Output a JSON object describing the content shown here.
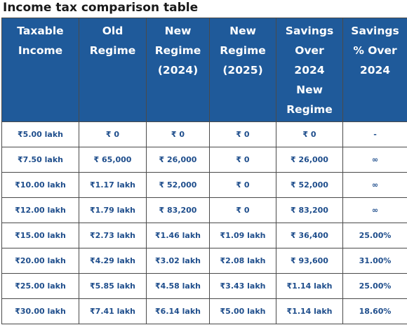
{
  "title": "Income tax comparison table",
  "table": {
    "headers": [
      [
        "Taxable",
        "Income"
      ],
      [
        "Old",
        "Regime"
      ],
      [
        "New",
        "Regime",
        "(2024)"
      ],
      [
        "New",
        "Regime",
        "(2025)"
      ],
      [
        "Savings",
        "Over",
        "2024",
        "New",
        "Regime"
      ],
      [
        "Savings",
        "% Over",
        "2024"
      ]
    ],
    "rows": [
      [
        "₹5.00 lakh",
        "₹ 0",
        "₹ 0",
        "₹ 0",
        "₹ 0",
        "-"
      ],
      [
        "₹7.50 lakh",
        "₹ 65,000",
        "₹ 26,000",
        "₹ 0",
        "₹ 26,000",
        "∞"
      ],
      [
        "₹10.00 lakh",
        "₹1.17 lakh",
        "₹ 52,000",
        "₹ 0",
        "₹ 52,000",
        "∞"
      ],
      [
        "₹12.00 lakh",
        "₹1.79 lakh",
        "₹ 83,200",
        "₹ 0",
        "₹ 83,200",
        "∞"
      ],
      [
        "₹15.00 lakh",
        "₹2.73 lakh",
        "₹1.46 lakh",
        "₹1.09 lakh",
        "₹ 36,400",
        "25.00%"
      ],
      [
        "₹20.00 lakh",
        "₹4.29 lakh",
        "₹3.02 lakh",
        "₹2.08 lakh",
        "₹ 93,600",
        "31.00%"
      ],
      [
        "₹25.00 lakh",
        "₹5.85 lakh",
        "₹4.58 lakh",
        "₹3.43 lakh",
        "₹1.14 lakh",
        "25.00%"
      ],
      [
        "₹30.00 lakh",
        "₹7.41 lakh",
        "₹6.14 lakh",
        "₹5.00 lakh",
        "₹1.14 lakh",
        "18.60%"
      ]
    ]
  }
}
